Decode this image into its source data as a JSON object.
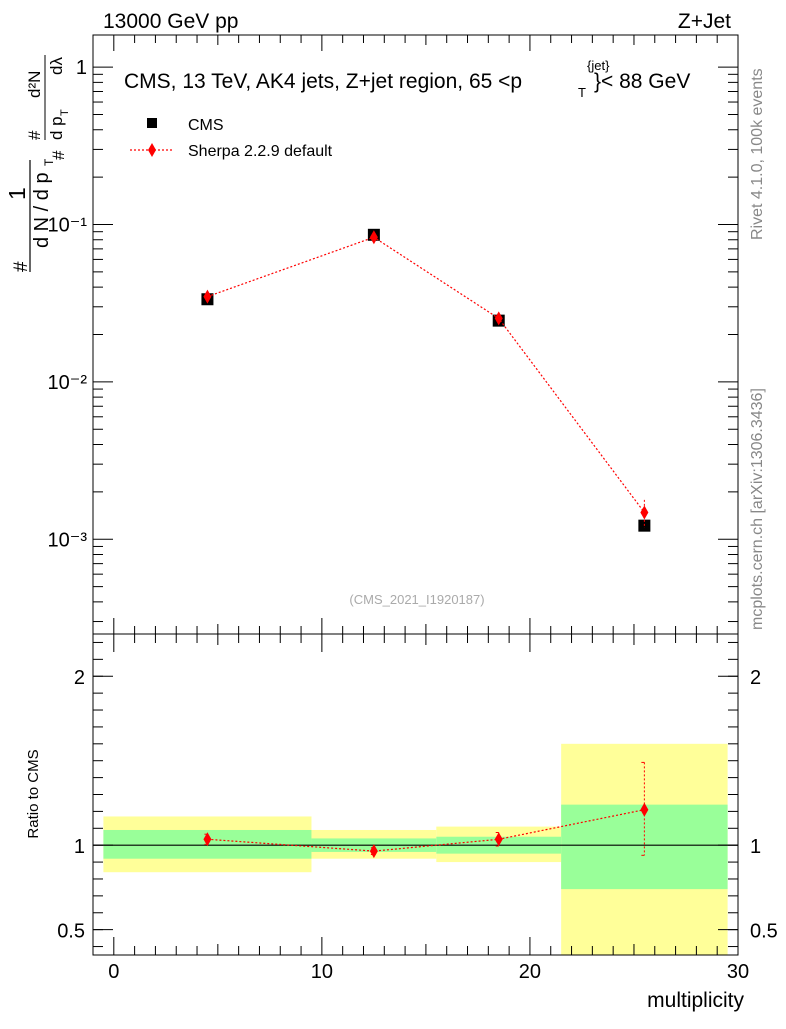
{
  "header": {
    "left": "13000 GeV pp",
    "right": "Z+Jet"
  },
  "side_labels": {
    "rivet": "Rivet 4.1.0,  100k events",
    "mcplots": "mcplots.cern.ch [arXiv:1306.3436]"
  },
  "colors": {
    "mc": "#ff0000",
    "band_inner": "#99ff99",
    "band_outer": "#ffff99",
    "data": "#000000"
  },
  "chart_data": [
    {
      "type": "scatter",
      "title": "CMS, 13 TeV, AK4 jets, Z+jet region, 65 <p",
      "title_sup": "{jet}",
      "title_sub": "T",
      "title_tail": "}< 88 GeV",
      "watermark": "(CMS_2021_I1920187)",
      "ylabel": {
        "one": "1",
        "hash": "#",
        "dN": "d N / d p",
        "T": "T",
        "d2N": "d²N",
        "dpt": "d p",
        "dlambda": "dλ"
      },
      "yscale": "log",
      "xlim": [
        -1,
        30
      ],
      "ylim": [
        0.00025,
        1.6
      ],
      "ytick_labels": [
        "10⁻³",
        "10⁻²",
        "10⁻¹",
        "1"
      ],
      "ytick_values": [
        0.001,
        0.01,
        0.1,
        1
      ],
      "legend": {
        "data": "CMS",
        "mc": "Sherpa 2.2.9 default",
        "position": "top-left"
      },
      "series": [
        {
          "name": "CMS",
          "x": [
            4.5,
            12.5,
            18.5,
            25.5
          ],
          "y": [
            0.0335,
            0.086,
            0.0245,
            0.00122
          ]
        },
        {
          "name": "Sherpa 2.2.9 default",
          "x": [
            4.5,
            12.5,
            18.5,
            25.5
          ],
          "y": [
            0.0348,
            0.083,
            0.0253,
            0.00148
          ],
          "yerr": [
            0.0008,
            0.0015,
            0.0008,
            0.0003
          ]
        }
      ]
    },
    {
      "type": "scatter",
      "ylabel": "Ratio to CMS",
      "xlabel": "multiplicity",
      "xlim": [
        -1,
        30
      ],
      "ylim": [
        0.35,
        2.25
      ],
      "xtick_labels": [
        "0",
        "10",
        "20",
        "30"
      ],
      "xtick_values": [
        0,
        10,
        20,
        30
      ],
      "ytick_labels": [
        "0.5",
        "1",
        "2"
      ],
      "ytick_values": [
        0.5,
        1,
        2
      ],
      "bands": [
        {
          "x": [
            -0.5,
            9.5
          ],
          "inner": [
            0.92,
            1.09
          ],
          "outer": [
            0.84,
            1.17
          ]
        },
        {
          "x": [
            9.5,
            15.5
          ],
          "inner": [
            0.96,
            1.04
          ],
          "outer": [
            0.92,
            1.09
          ]
        },
        {
          "x": [
            15.5,
            21.5
          ],
          "inner": [
            0.95,
            1.05
          ],
          "outer": [
            0.9,
            1.11
          ]
        },
        {
          "x": [
            21.5,
            29.5
          ],
          "inner": [
            0.74,
            1.24
          ],
          "outer": [
            0.35,
            1.6
          ]
        }
      ],
      "series": [
        {
          "name": "Sherpa 2.2.9 default",
          "x": [
            4.5,
            12.5,
            18.5,
            25.5
          ],
          "y": [
            1.035,
            0.965,
            1.035,
            1.21
          ],
          "yerr_low": [
            0.03,
            0.02,
            0.04,
            0.27
          ],
          "yerr_high": [
            0.03,
            0.02,
            0.04,
            0.28
          ]
        }
      ]
    }
  ]
}
